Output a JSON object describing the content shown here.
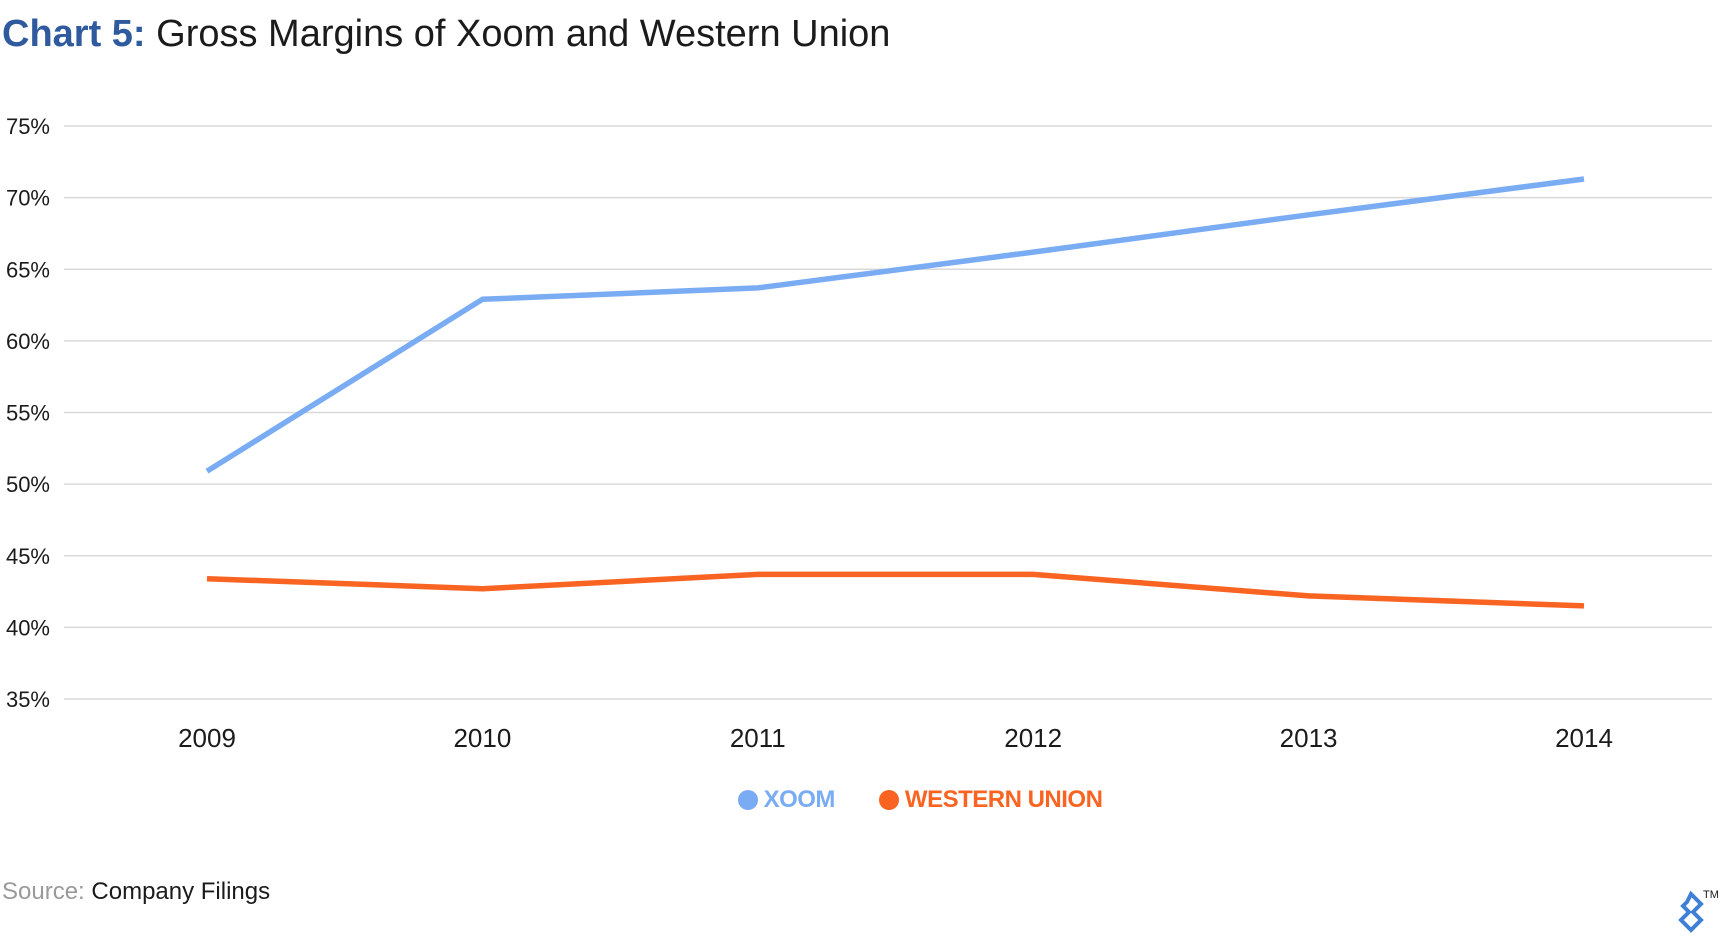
{
  "title": {
    "prefix": "Chart 5:",
    "main": "Gross Margins of Xoom and Western Union"
  },
  "source": {
    "label": "Source:",
    "value": "Company Filings"
  },
  "logo": {
    "icon": "toptal-logo-icon",
    "trademark": "TM"
  },
  "chart_data": {
    "type": "line",
    "title": "Gross Margins of Xoom and Western Union",
    "x": [
      "2009",
      "2010",
      "2011",
      "2012",
      "2013",
      "2014"
    ],
    "ylim": [
      35,
      75
    ],
    "yticks": [
      "35%",
      "40%",
      "45%",
      "50%",
      "55%",
      "60%",
      "65%",
      "70%",
      "75%"
    ],
    "ytick_values": [
      35,
      40,
      45,
      50,
      55,
      60,
      65,
      70,
      75
    ],
    "grid": true,
    "legend_position": "bottom-center",
    "series": [
      {
        "name": "XOOM",
        "color": "#7aacf4",
        "values": [
          50.9,
          62.9,
          63.7,
          66.2,
          68.8,
          71.3
        ]
      },
      {
        "name": "WESTERN UNION",
        "color": "#f96422",
        "values": [
          43.4,
          42.7,
          43.7,
          43.7,
          42.2,
          41.5
        ]
      }
    ]
  }
}
